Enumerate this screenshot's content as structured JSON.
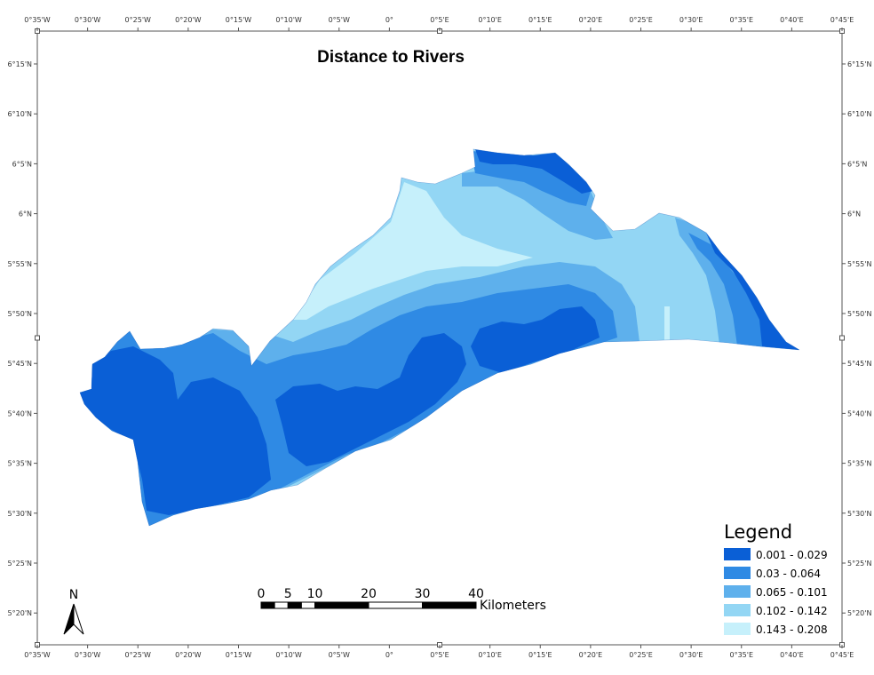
{
  "map": {
    "title": "Distance to Rivers",
    "legend": {
      "title": "Legend",
      "classes": [
        {
          "label": "0.001 - 0.029",
          "color": "#0a5fd6"
        },
        {
          "label": "0.03 - 0.064",
          "color": "#2f8ae4"
        },
        {
          "label": "0.065 - 0.101",
          "color": "#5eb0ec"
        },
        {
          "label": "0.102 - 0.142",
          "color": "#93d6f4"
        },
        {
          "label": "0.143 - 0.208",
          "color": "#c6f0fb"
        }
      ]
    },
    "longitude_ticks": [
      "0°35'W",
      "0°30'W",
      "0°25'W",
      "0°20'W",
      "0°15'W",
      "0°10'W",
      "0°5'W",
      "0°",
      "0°5'E",
      "0°10'E",
      "0°15'E",
      "0°20'E",
      "0°25'E",
      "0°30'E",
      "0°35'E",
      "0°40'E",
      "0°45'E"
    ],
    "latitude_ticks": [
      "6°15'N",
      "6°10'N",
      "6°5'N",
      "6°N",
      "5°55'N",
      "5°50'N",
      "5°45'N",
      "5°40'N",
      "5°35'N",
      "5°30'N",
      "5°25'N",
      "5°20'N"
    ],
    "scale_bar": {
      "values": [
        "0",
        "5",
        "10",
        "20",
        "30",
        "40"
      ],
      "unit": "Kilometers"
    },
    "north_arrow": {
      "label": "N"
    }
  }
}
